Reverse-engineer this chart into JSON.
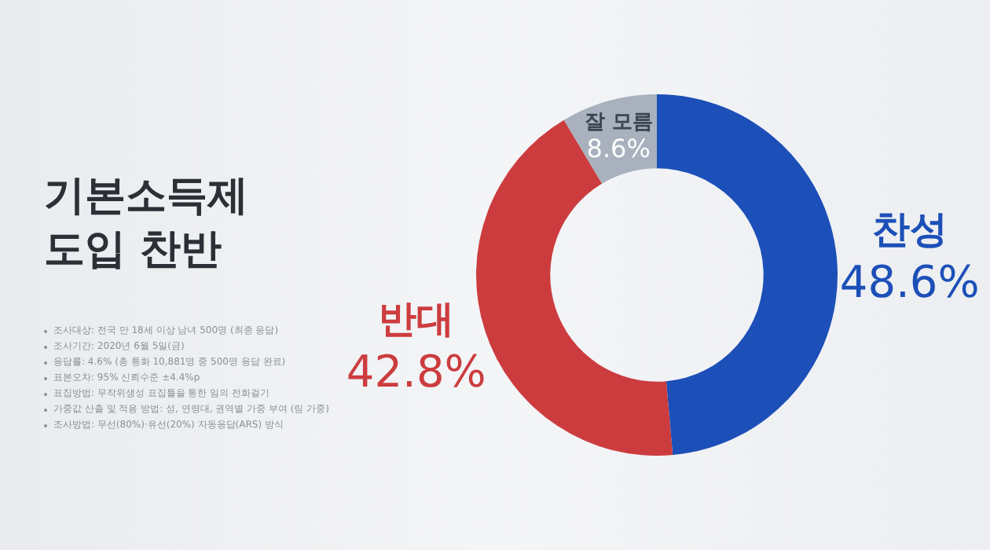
{
  "chart_data": {
    "type": "donut",
    "title": "기본소득제\n도입 찬반",
    "categories": [
      "찬성",
      "반대",
      "잘 모름"
    ],
    "values": [
      48.6,
      42.8,
      8.6
    ],
    "colors": [
      "#1c4fb8",
      "#cc3c3e",
      "#a8b1bd"
    ],
    "value_labels": [
      "48.6%",
      "42.8%",
      "8.6%"
    ],
    "legend": false,
    "annotations": [
      "조사대상: 전국 만 18세 이상 남녀 500명 (최종 응답)",
      "조사기간: 2020년 6월 5일(금)",
      "응답률: 4.6% (총 통화 10,881명 중 500명 응답 완료)",
      "표본오차: 95% 신뢰수준 ±4.4%p",
      "표집방법: 무작위생성 표집틀을 통한 임의 전화걸기",
      "가중값 산출 및 적용 방법: 성, 연령대, 권역별 가중 부여 (림 가중)",
      "조사방법: 무선(80%)·유선(20%) 자동응답(ARS) 방식"
    ]
  }
}
